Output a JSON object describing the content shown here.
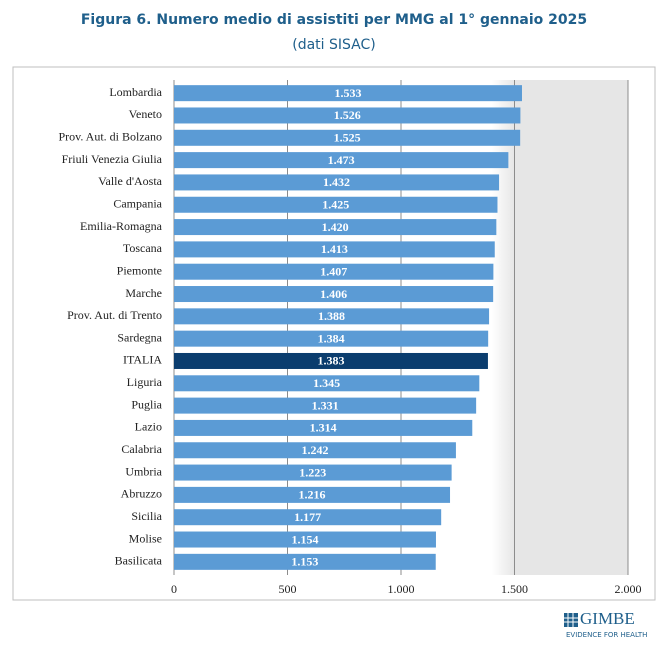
{
  "chart_data": {
    "type": "bar",
    "orientation": "horizontal",
    "title": "Figura 6. Numero medio di assistiti per MMG al 1° gennaio 2025",
    "subtitle": "(dati SISAC)",
    "categories": [
      "Lombardia",
      "Veneto",
      "Prov. Aut. di Bolzano",
      "Friuli Venezia Giulia",
      "Valle d'Aosta",
      "Campania",
      "Emilia-Romagna",
      "Toscana",
      "Piemonte",
      "Marche",
      "Prov. Aut. di Trento",
      "Sardegna",
      "ITALIA",
      "Liguria",
      "Puglia",
      "Lazio",
      "Calabria",
      "Umbria",
      "Abruzzo",
      "Sicilia",
      "Molise",
      "Basilicata"
    ],
    "values": [
      1533,
      1526,
      1525,
      1473,
      1432,
      1425,
      1420,
      1413,
      1407,
      1406,
      1388,
      1384,
      1383,
      1345,
      1331,
      1314,
      1242,
      1223,
      1216,
      1177,
      1154,
      1153
    ],
    "value_labels": [
      "1.533",
      "1.526",
      "1.525",
      "1.473",
      "1.432",
      "1.425",
      "1.420",
      "1.413",
      "1.407",
      "1.406",
      "1.388",
      "1.384",
      "1.383",
      "1.345",
      "1.331",
      "1.314",
      "1.242",
      "1.223",
      "1.216",
      "1.177",
      "1.154",
      "1.153"
    ],
    "colors": [
      "#5b9bd5",
      "#5b9bd5",
      "#5b9bd5",
      "#5b9bd5",
      "#5b9bd5",
      "#5b9bd5",
      "#5b9bd5",
      "#5b9bd5",
      "#5b9bd5",
      "#5b9bd5",
      "#5b9bd5",
      "#5b9bd5",
      "#0b3d6e",
      "#5b9bd5",
      "#5b9bd5",
      "#5b9bd5",
      "#5b9bd5",
      "#5b9bd5",
      "#5b9bd5",
      "#5b9bd5",
      "#5b9bd5",
      "#5b9bd5"
    ],
    "xlim": [
      0,
      2000
    ],
    "xticks": [
      0,
      500,
      {
        "value": 1000,
        "label": "1.000"
      },
      {
        "value": 1500,
        "label": "1.500"
      },
      {
        "value": 2000,
        "label": "2.000"
      }
    ],
    "grid": true
  },
  "logo": {
    "name": "GIMBE",
    "tagline": "EVIDENCE FOR HEALTH"
  }
}
